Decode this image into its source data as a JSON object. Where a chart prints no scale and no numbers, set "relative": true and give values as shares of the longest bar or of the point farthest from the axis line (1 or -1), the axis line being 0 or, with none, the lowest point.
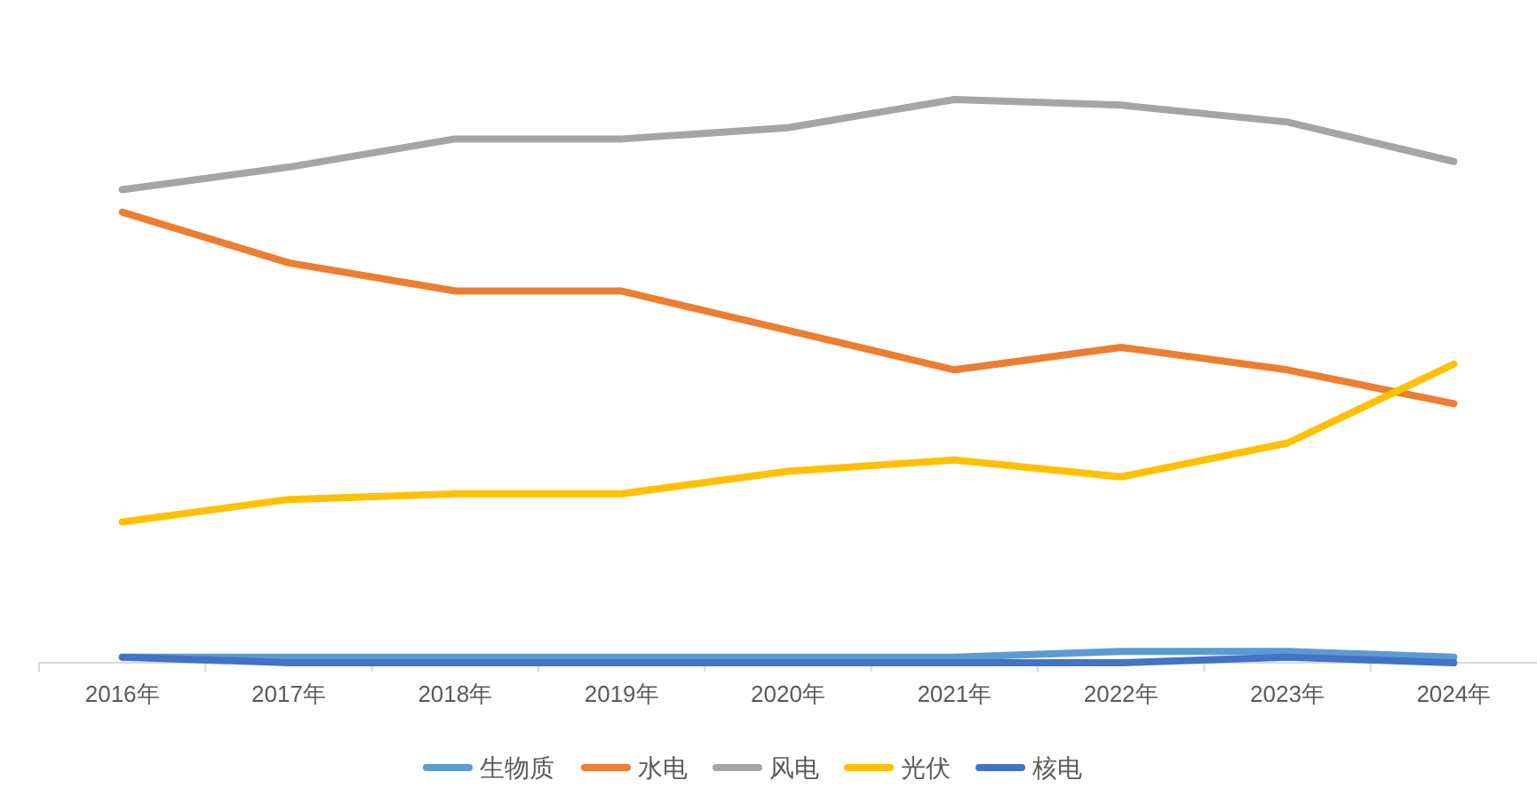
{
  "chart_data": {
    "type": "line",
    "relative": true,
    "legend": "bottom",
    "categories": [
      "2016年",
      "2017年",
      "2018年",
      "2019年",
      "2020年",
      "2021年",
      "2022年",
      "2023年",
      "2024年"
    ],
    "series": [
      {
        "name": "生物质",
        "color": "#5b9bd5",
        "values": [
          0.01,
          0.01,
          0.01,
          0.01,
          0.01,
          0.01,
          0.02,
          0.02,
          0.01
        ]
      },
      {
        "name": "水电",
        "color": "#ed7d31",
        "values": [
          0.8,
          0.71,
          0.66,
          0.66,
          0.59,
          0.52,
          0.56,
          0.52,
          0.46
        ]
      },
      {
        "name": "风电",
        "color": "#a5a5a5",
        "values": [
          0.84,
          0.88,
          0.93,
          0.93,
          0.95,
          1,
          0.99,
          0.96,
          0.89
        ]
      },
      {
        "name": "光伏",
        "color": "#ffc000",
        "values": [
          0.25,
          0.29,
          0.3,
          0.3,
          0.34,
          0.36,
          0.33,
          0.39,
          0.53
        ]
      },
      {
        "name": "核电",
        "color": "#4472c4",
        "values": [
          0.01,
          0,
          0,
          0,
          0,
          0,
          0,
          0.01,
          0
        ]
      }
    ]
  }
}
